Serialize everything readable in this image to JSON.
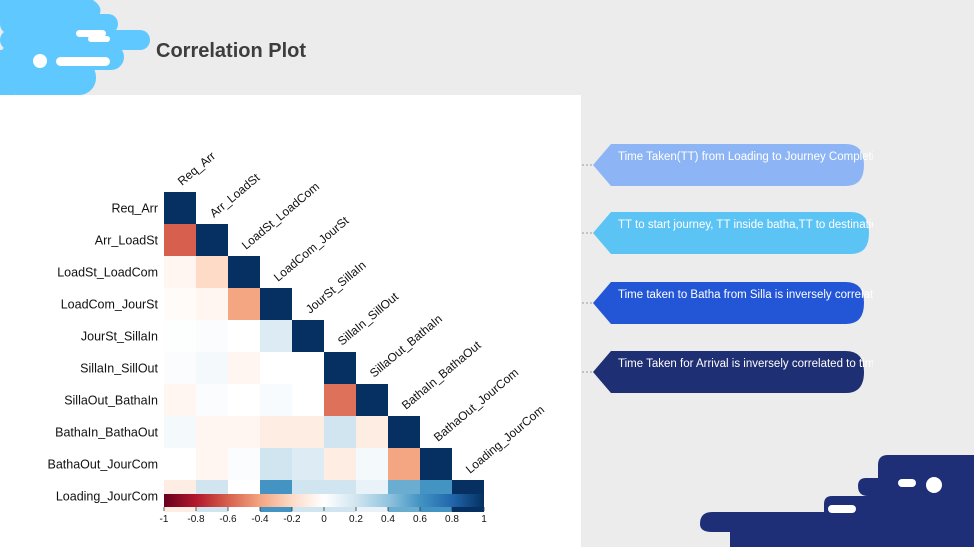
{
  "slide": {
    "title": "Correlation Plot"
  },
  "colors": {
    "negative": "#67001f",
    "neutral": "#ffffff",
    "positive": "#053061",
    "deco_light_blue": "#5ec8ff",
    "deco_navy": "#1e2f78"
  },
  "callouts": [
    {
      "text": "Time Taken(TT) from Loading to Journey Completion is the Dependent variable",
      "color": "#8db5f5"
    },
    {
      "text": "TT to start journey, TT  inside batha,TT  to destination are well correlated to journey time",
      "color": "#5cc4f5"
    },
    {
      "text": "Time taken to Batha from Silla is inversely correlated to the time spent inside Silla",
      "color": "#2256d6"
    },
    {
      "text": "Time Taken for Arrival is inversely correlated to time taken for loading",
      "color": "#1f2f73"
    }
  ],
  "chart_data": {
    "type": "heatmap",
    "variables": [
      "Req_Arr",
      "Arr_LoadSt",
      "LoadSt_LoadCom",
      "LoadCom_JourSt",
      "JourSt_SillaIn",
      "SillaIn_SillOut",
      "SillaOut_BathaIn",
      "BathaIn_BathaOut",
      "BathaOut_JourCom",
      "Loading_JourCom"
    ],
    "matrix": [
      [
        1
      ],
      [
        -0.6,
        1
      ],
      [
        -0.05,
        -0.2,
        1
      ],
      [
        -0.02,
        -0.05,
        -0.4,
        1
      ],
      [
        0.01,
        0.02,
        0.0,
        0.15,
        1
      ],
      [
        0.02,
        0.05,
        -0.05,
        0.0,
        0.0,
        1
      ],
      [
        -0.05,
        0.02,
        0.0,
        0.03,
        0.0,
        -0.55,
        1
      ],
      [
        0.05,
        -0.05,
        -0.05,
        -0.1,
        -0.1,
        0.2,
        -0.1,
        1
      ],
      [
        0.0,
        -0.05,
        0.02,
        0.2,
        0.15,
        -0.1,
        0.05,
        -0.4,
        1
      ],
      [
        -0.1,
        0.2,
        0.0,
        0.6,
        0.2,
        0.2,
        0.1,
        0.5,
        0.6,
        1
      ]
    ],
    "colorbar": {
      "range": [
        -1,
        1
      ],
      "ticks": [
        "-1",
        "-0.8",
        "-0.6",
        "-0.4",
        "-0.2",
        "0",
        "0.2",
        "0.4",
        "0.6",
        "0.8",
        "1"
      ]
    }
  }
}
